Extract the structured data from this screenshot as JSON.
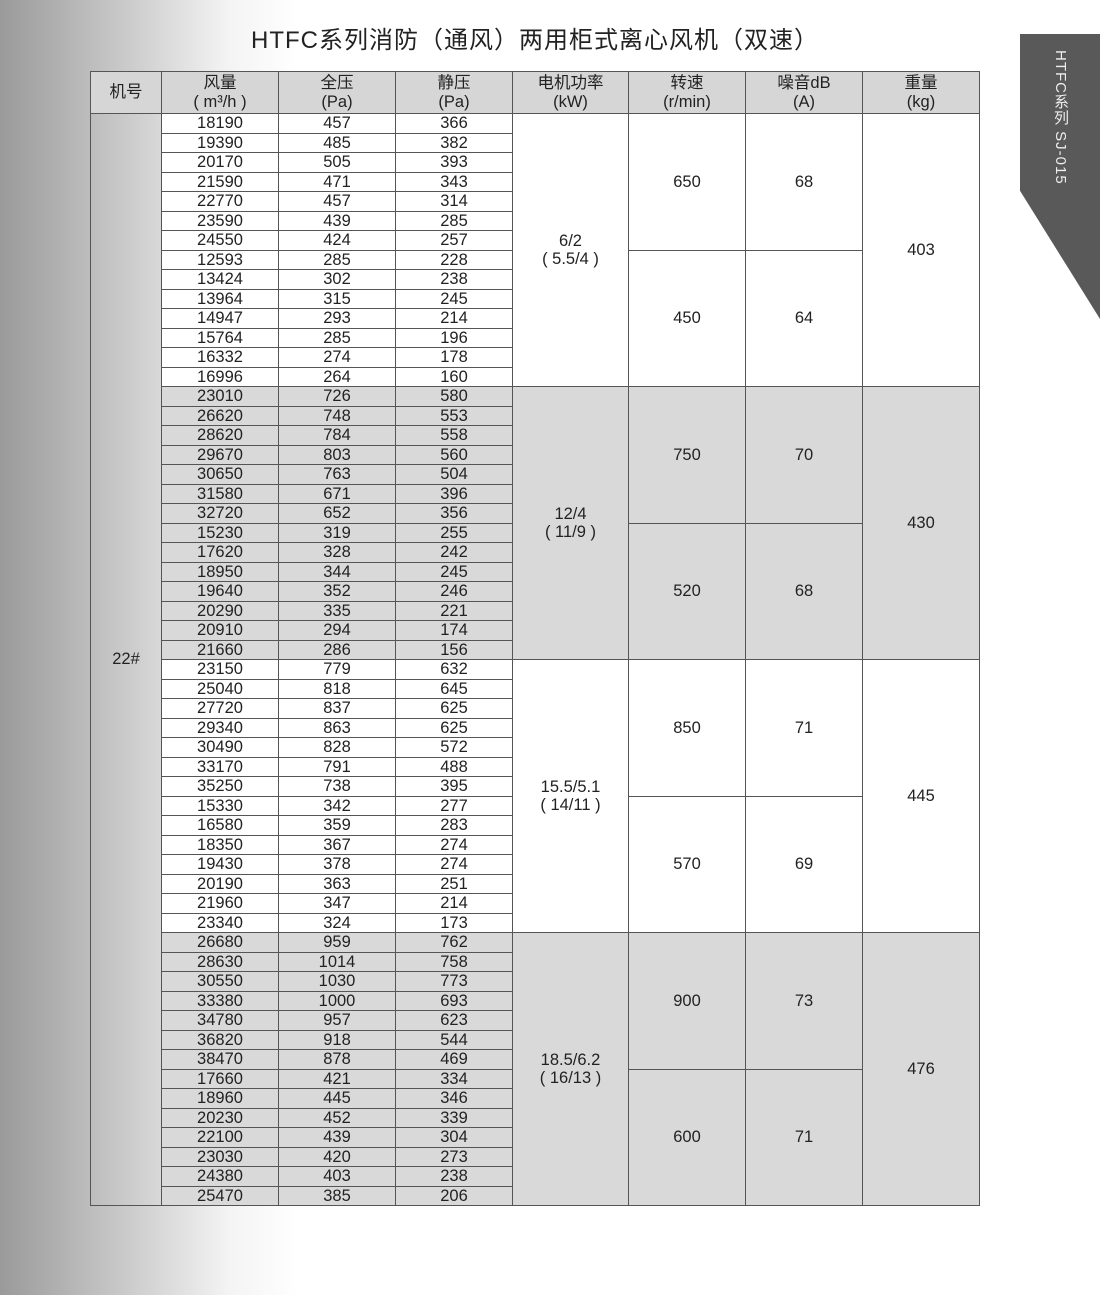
{
  "title": "HTFC系列消防（通风）两用柜式离心风机（双速）",
  "side_tab": "HTFC系列  SJ-015",
  "colors": {
    "header_bg": "#d6d6d6",
    "shaded_group_bg": "#d9d9d9",
    "side_tab_bg": "#595959"
  },
  "headers": [
    {
      "l1": "机号",
      "l2": ""
    },
    {
      "l1": "风量",
      "l2": "( m³/h )"
    },
    {
      "l1": "全压",
      "l2": "(Pa)"
    },
    {
      "l1": "静压",
      "l2": "(Pa)"
    },
    {
      "l1": "电机功率",
      "l2": "(kW)"
    },
    {
      "l1": "转速",
      "l2": "(r/min)"
    },
    {
      "l1": "噪音dB",
      "l2": "(A)"
    },
    {
      "l1": "重量",
      "l2": "(kg)"
    }
  ],
  "machine": "22#",
  "groups": [
    {
      "power": "6/2",
      "power_sub": "( 5.5/4 )",
      "weight": "403",
      "shaded": false,
      "speeds": [
        {
          "rpm": "650",
          "noise": "68",
          "rows": [
            [
              "18190",
              "457",
              "366"
            ],
            [
              "19390",
              "485",
              "382"
            ],
            [
              "20170",
              "505",
              "393"
            ],
            [
              "21590",
              "471",
              "343"
            ],
            [
              "22770",
              "457",
              "314"
            ],
            [
              "23590",
              "439",
              "285"
            ],
            [
              "24550",
              "424",
              "257"
            ]
          ]
        },
        {
          "rpm": "450",
          "noise": "64",
          "rows": [
            [
              "12593",
              "285",
              "228"
            ],
            [
              "13424",
              "302",
              "238"
            ],
            [
              "13964",
              "315",
              "245"
            ],
            [
              "14947",
              "293",
              "214"
            ],
            [
              "15764",
              "285",
              "196"
            ],
            [
              "16332",
              "274",
              "178"
            ],
            [
              "16996",
              "264",
              "160"
            ]
          ]
        }
      ]
    },
    {
      "power": "12/4",
      "power_sub": "( 11/9 )",
      "weight": "430",
      "shaded": true,
      "speeds": [
        {
          "rpm": "750",
          "noise": "70",
          "rows": [
            [
              "23010",
              "726",
              "580"
            ],
            [
              "26620",
              "748",
              "553"
            ],
            [
              "28620",
              "784",
              "558"
            ],
            [
              "29670",
              "803",
              "560"
            ],
            [
              "30650",
              "763",
              "504"
            ],
            [
              "31580",
              "671",
              "396"
            ],
            [
              "32720",
              "652",
              "356"
            ]
          ]
        },
        {
          "rpm": "520",
          "noise": "68",
          "rows": [
            [
              "15230",
              "319",
              "255"
            ],
            [
              "17620",
              "328",
              "242"
            ],
            [
              "18950",
              "344",
              "245"
            ],
            [
              "19640",
              "352",
              "246"
            ],
            [
              "20290",
              "335",
              "221"
            ],
            [
              "20910",
              "294",
              "174"
            ],
            [
              "21660",
              "286",
              "156"
            ]
          ]
        }
      ]
    },
    {
      "power": "15.5/5.1",
      "power_sub": "( 14/11 )",
      "weight": "445",
      "shaded": false,
      "speeds": [
        {
          "rpm": "850",
          "noise": "71",
          "rows": [
            [
              "23150",
              "779",
              "632"
            ],
            [
              "25040",
              "818",
              "645"
            ],
            [
              "27720",
              "837",
              "625"
            ],
            [
              "29340",
              "863",
              "625"
            ],
            [
              "30490",
              "828",
              "572"
            ],
            [
              "33170",
              "791",
              "488"
            ],
            [
              "35250",
              "738",
              "395"
            ]
          ]
        },
        {
          "rpm": "570",
          "noise": "69",
          "rows": [
            [
              "15330",
              "342",
              "277"
            ],
            [
              "16580",
              "359",
              "283"
            ],
            [
              "18350",
              "367",
              "274"
            ],
            [
              "19430",
              "378",
              "274"
            ],
            [
              "20190",
              "363",
              "251"
            ],
            [
              "21960",
              "347",
              "214"
            ],
            [
              "23340",
              "324",
              "173"
            ]
          ]
        }
      ]
    },
    {
      "power": "18.5/6.2",
      "power_sub": "( 16/13 )",
      "weight": "476",
      "shaded": true,
      "speeds": [
        {
          "rpm": "900",
          "noise": "73",
          "rows": [
            [
              "26680",
              "959",
              "762"
            ],
            [
              "28630",
              "1014",
              "758"
            ],
            [
              "30550",
              "1030",
              "773"
            ],
            [
              "33380",
              "1000",
              "693"
            ],
            [
              "34780",
              "957",
              "623"
            ],
            [
              "36820",
              "918",
              "544"
            ],
            [
              "38470",
              "878",
              "469"
            ]
          ]
        },
        {
          "rpm": "600",
          "noise": "71",
          "rows": [
            [
              "17660",
              "421",
              "334"
            ],
            [
              "18960",
              "445",
              "346"
            ],
            [
              "20230",
              "452",
              "339"
            ],
            [
              "22100",
              "439",
              "304"
            ],
            [
              "23030",
              "420",
              "273"
            ],
            [
              "24380",
              "403",
              "238"
            ],
            [
              "25470",
              "385",
              "206"
            ]
          ]
        }
      ]
    }
  ]
}
